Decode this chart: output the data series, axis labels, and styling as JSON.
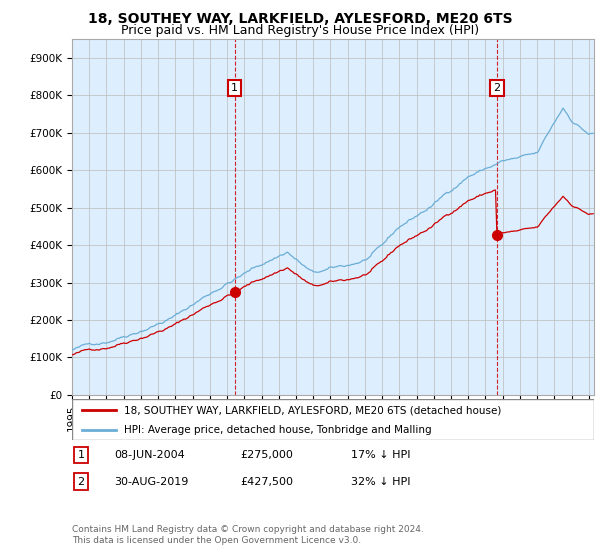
{
  "title": "18, SOUTHEY WAY, LARKFIELD, AYLESFORD, ME20 6TS",
  "subtitle": "Price paid vs. HM Land Registry's House Price Index (HPI)",
  "ylim": [
    0,
    950000
  ],
  "yticks": [
    0,
    100000,
    200000,
    300000,
    400000,
    500000,
    600000,
    700000,
    800000,
    900000
  ],
  "ytick_labels": [
    "£0",
    "£100K",
    "£200K",
    "£300K",
    "£400K",
    "£500K",
    "£600K",
    "£700K",
    "£800K",
    "£900K"
  ],
  "hpi_color": "#6baed6",
  "price_color": "#cc0000",
  "legend_line1": "18, SOUTHEY WAY, LARKFIELD, AYLESFORD, ME20 6TS (detached house)",
  "legend_line2": "HPI: Average price, detached house, Tonbridge and Malling",
  "background_color": "#ffffff",
  "plot_bg_color": "#ddeeff",
  "grid_color": "#bbbbbb",
  "title_fontsize": 10,
  "subtitle_fontsize": 9,
  "tick_fontsize": 7.5,
  "xlim_start": 1995.0,
  "xlim_end": 2025.3,
  "marker1_x": 2004.44,
  "marker1_y": 275000,
  "marker2_x": 2019.67,
  "marker2_y": 427500,
  "footer": "Contains HM Land Registry data © Crown copyright and database right 2024.\nThis data is licensed under the Open Government Licence v3.0."
}
